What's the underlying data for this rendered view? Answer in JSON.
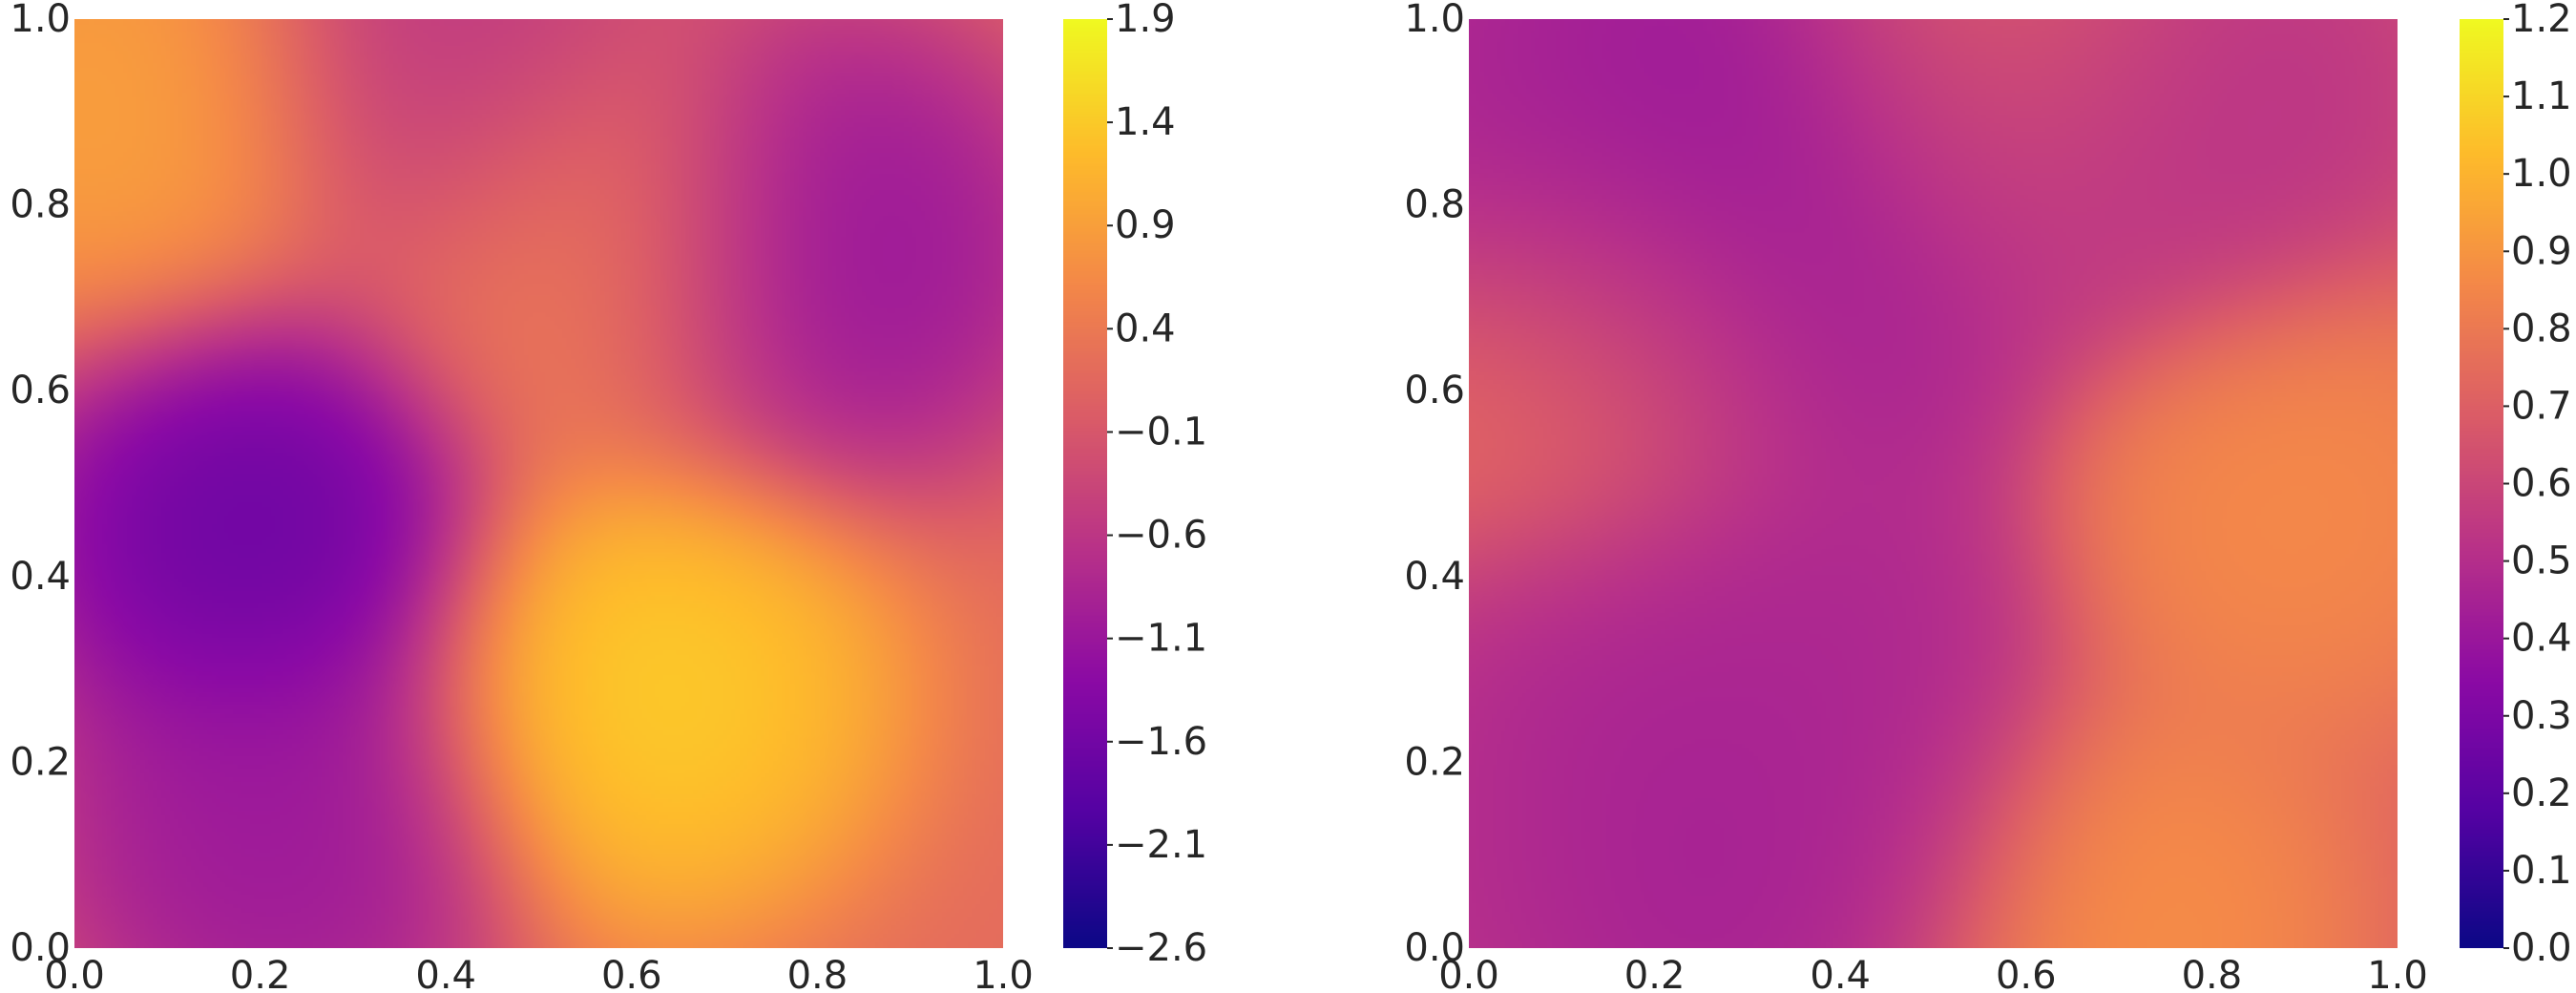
{
  "chart_data": [
    {
      "type": "heatmap",
      "title": "",
      "xlabel": "",
      "ylabel": "",
      "colormap": "plasma",
      "xlim": [
        0.0,
        1.0
      ],
      "ylim": [
        0.0,
        1.0
      ],
      "x_ticks": [
        "0.0",
        "0.2",
        "0.4",
        "0.6",
        "0.8",
        "1.0"
      ],
      "y_ticks": [
        "0.0",
        "0.2",
        "0.4",
        "0.6",
        "0.8",
        "1.0"
      ],
      "colorbar": {
        "range": [
          -2.6,
          1.9
        ],
        "ticks": [
          "-2.6",
          "-2.1",
          "-1.6",
          "-1.1",
          "-0.6",
          "-0.1",
          "0.4",
          "0.9",
          "1.4",
          "1.9"
        ]
      },
      "field_features": [
        {
          "x": 0.62,
          "y": 0.28,
          "value": 1.55
        },
        {
          "x": 0.08,
          "y": 0.9,
          "value": 1.0
        },
        {
          "x": 0.55,
          "y": 0.75,
          "value": 0.5
        },
        {
          "x": 0.2,
          "y": 0.45,
          "value": -1.9
        },
        {
          "x": 0.22,
          "y": 0.12,
          "value": -1.2
        },
        {
          "x": 0.8,
          "y": 0.75,
          "value": -1.3
        },
        {
          "x": 0.4,
          "y": 0.95,
          "value": -0.7
        }
      ],
      "field_base": 0.2
    },
    {
      "type": "heatmap",
      "title": "",
      "xlabel": "",
      "ylabel": "",
      "colormap": "plasma",
      "xlim": [
        0.0,
        1.0
      ],
      "ylim": [
        0.0,
        1.0
      ],
      "x_ticks": [
        "0.0",
        "0.2",
        "0.4",
        "0.6",
        "0.8",
        "1.0"
      ],
      "y_ticks": [
        "0.0",
        "0.2",
        "0.4",
        "0.6",
        "0.8",
        "1.0"
      ],
      "colorbar": {
        "range": [
          0.0,
          1.2
        ],
        "ticks": [
          "0.0",
          "0.1",
          "0.2",
          "0.3",
          "0.4",
          "0.5",
          "0.6",
          "0.7",
          "0.8",
          "0.9",
          "1.0",
          "1.1",
          "1.2"
        ]
      },
      "field_features": [
        {
          "x": 0.2,
          "y": 0.9,
          "value": 0.37
        },
        {
          "x": 0.38,
          "y": 0.9,
          "value": 0.38
        },
        {
          "x": 0.6,
          "y": 0.88,
          "value": 0.5
        },
        {
          "x": 0.78,
          "y": 0.9,
          "value": 0.5
        },
        {
          "x": 0.05,
          "y": 0.9,
          "value": 0.45
        },
        {
          "x": 0.2,
          "y": 0.72,
          "value": 0.45
        },
        {
          "x": 0.38,
          "y": 0.68,
          "value": 0.42
        },
        {
          "x": 0.2,
          "y": 0.3,
          "value": 0.45
        },
        {
          "x": 0.38,
          "y": 0.32,
          "value": 0.45
        },
        {
          "x": 0.2,
          "y": 0.1,
          "value": 0.4
        },
        {
          "x": 0.38,
          "y": 0.1,
          "value": 0.45
        },
        {
          "x": 0.05,
          "y": 0.1,
          "value": 0.5
        },
        {
          "x": 0.88,
          "y": 0.48,
          "value": 0.88
        },
        {
          "x": 0.7,
          "y": 0.02,
          "value": 0.9
        },
        {
          "x": 0.55,
          "y": 0.98,
          "value": 0.8
        },
        {
          "x": 0.12,
          "y": 0.62,
          "value": 0.8
        }
      ],
      "field_base": 0.68
    }
  ]
}
